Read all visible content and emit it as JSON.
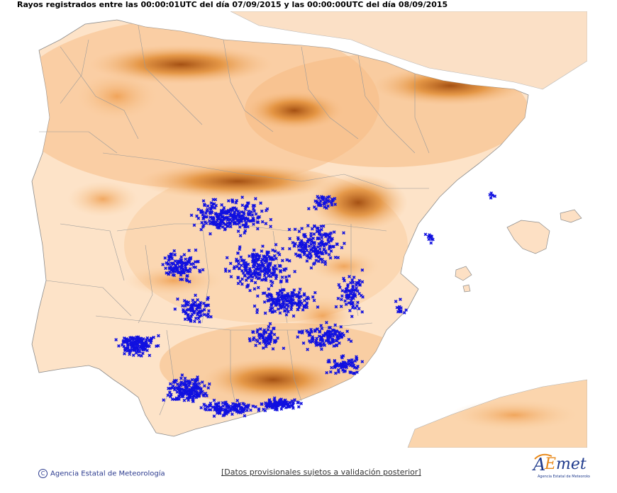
{
  "title": "Rayos registrados entre las 00:00:01UTC del día 07/09/2015 y las 00:00:00UTC del día 08/09/2015",
  "footer": {
    "copyright": "Agencia Estatal de Meteorología",
    "notice": "[Datos provisionales sujetos a validación posterior]"
  },
  "logo": {
    "name": "AEMet",
    "subtitle": "Agencia Estatal de Meteorología"
  },
  "colors": {
    "strike_marker": "#1010e0",
    "land_base": "#fde5cf",
    "relief_mid": "#f7b87a",
    "relief_high": "#e07a1e",
    "relief_peak": "#8a3a08",
    "border_line": "#909090"
  },
  "marker": "x"
}
